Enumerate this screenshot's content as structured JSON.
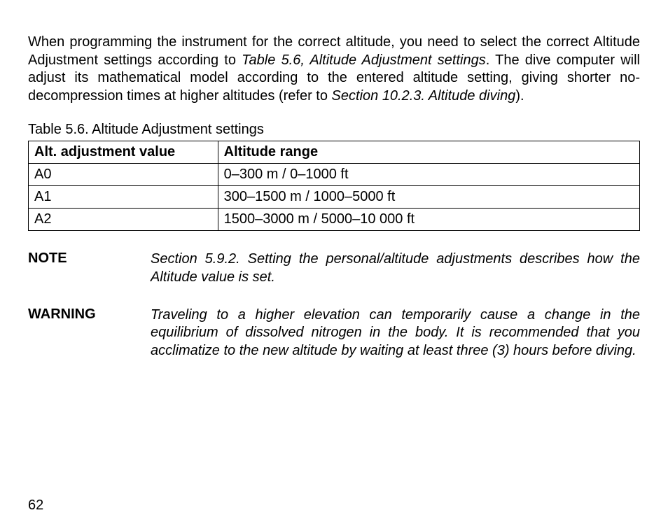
{
  "paragraph": {
    "part1": "When programming the instrument for the correct altitude, you need to select the correct Altitude Adjustment settings according to ",
    "ref1": "Table 5.6, Altitude Adjustment settings",
    "part2": ". The dive computer will adjust its mathematical model according to the entered altitude setting, giving shorter no-decompression times at higher altitudes (refer to ",
    "ref2": "Section 10.2.3. Altitude diving",
    "part3": ")."
  },
  "table": {
    "caption": "Table 5.6. Altitude Adjustment settings",
    "columns": [
      "Alt. adjustment value",
      "Altitude range"
    ],
    "rows": [
      [
        "A0",
        "0–300 m / 0–1000 ft"
      ],
      [
        "A1",
        "300–1500 m / 1000–5000 ft"
      ],
      [
        "A2",
        "1500–3000 m / 5000–10 000 ft"
      ]
    ],
    "border_color": "#000000",
    "header_fontweight": "bold",
    "font_size_pt": 15
  },
  "note": {
    "label": "NOTE",
    "text": "Section 5.9.2. Setting the personal/altitude adjustments describes how the Altitude value is set."
  },
  "warning": {
    "label": "WARNING",
    "text": "Traveling to a higher elevation can temporarily cause a change in the equilibrium of dissolved nitrogen in the body. It is recommended that you acclimatize to the new altitude by waiting at least three (3) hours before diving."
  },
  "page_number": "62",
  "style": {
    "background_color": "#ffffff",
    "text_color": "#000000",
    "font_family": "Arial, Helvetica, sans-serif"
  }
}
